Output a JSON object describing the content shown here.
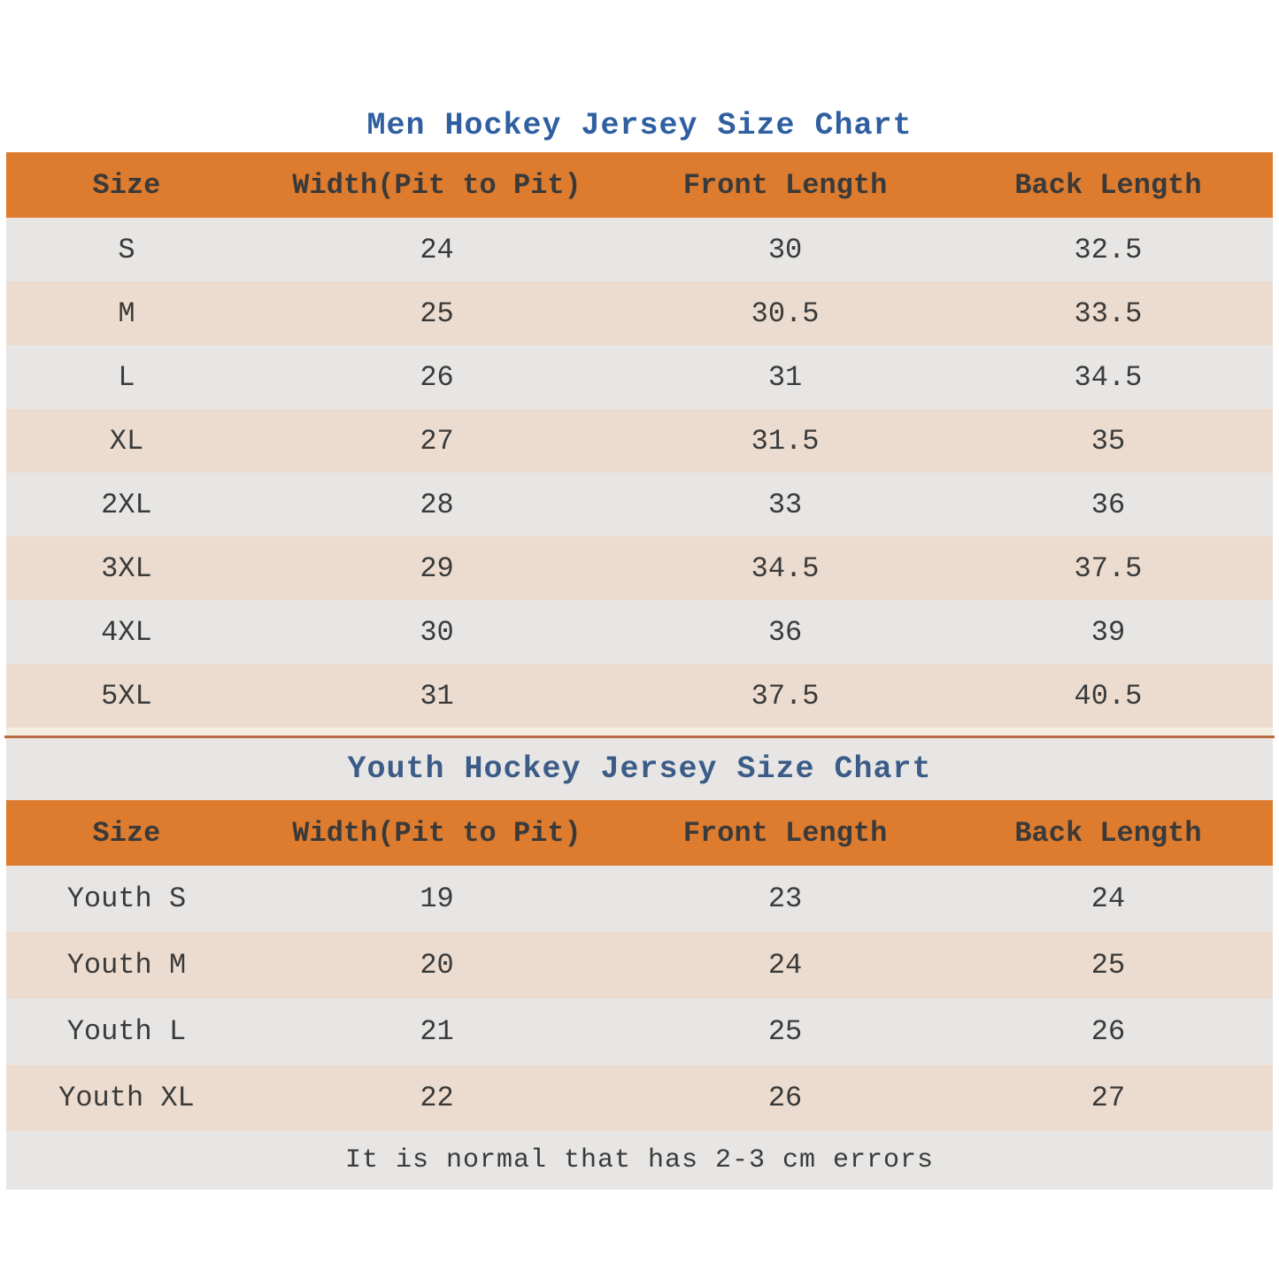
{
  "chart_data": [
    {
      "type": "table",
      "title": "Men Hockey Jersey Size Chart",
      "columns": [
        "Size",
        "Width(Pit to Pit)",
        "Front Length",
        "Back Length"
      ],
      "rows": [
        [
          "S",
          "24",
          "30",
          "32.5"
        ],
        [
          "M",
          "25",
          "30.5",
          "33.5"
        ],
        [
          "L",
          "26",
          "31",
          "34.5"
        ],
        [
          "XL",
          "27",
          "31.5",
          "35"
        ],
        [
          "2XL",
          "28",
          "33",
          "36"
        ],
        [
          "3XL",
          "29",
          "34.5",
          "37.5"
        ],
        [
          "4XL",
          "30",
          "36",
          "39"
        ],
        [
          "5XL",
          "31",
          "37.5",
          "40.5"
        ]
      ],
      "layout": {
        "grid": "off",
        "header_style": "orange-band",
        "row_striping": "gray-peach-alternating"
      }
    },
    {
      "type": "table",
      "title": "Youth Hockey Jersey Size Chart",
      "columns": [
        "Size",
        "Width(Pit to Pit)",
        "Front Length",
        "Back Length"
      ],
      "rows": [
        [
          "Youth S",
          "19",
          "23",
          "24"
        ],
        [
          "Youth M",
          "20",
          "24",
          "25"
        ],
        [
          "Youth L",
          "21",
          "25",
          "26"
        ],
        [
          "Youth XL",
          "22",
          "26",
          "27"
        ]
      ],
      "layout": {
        "grid": "off",
        "header_style": "orange-band",
        "row_striping": "gray-peach-alternating"
      }
    }
  ],
  "footer": {
    "note": "It is normal that has 2-3 cm errors"
  },
  "colors": {
    "header_bg": "#dd7b2e",
    "header_text": "#f7e9d4",
    "men_title_color": "#2f5fa0",
    "youth_title_color": "#3c5c88",
    "row_gray": "#e8e6e4",
    "row_peach": "#ecdccf",
    "band_gray": "#e8e6e4",
    "divider_cream": "#f3ecdf",
    "divider_line": "#bb6b45",
    "cell_text": "#3a3a3a"
  }
}
